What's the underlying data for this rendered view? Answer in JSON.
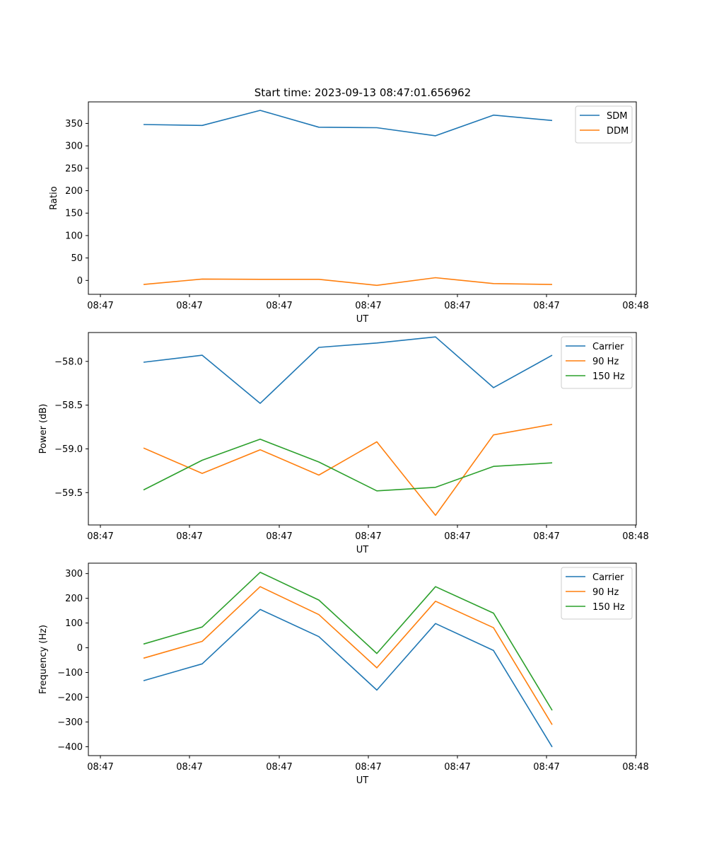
{
  "title": "Start time: 2023-09-13 08:47:01.656962",
  "colors": {
    "c0": "#1f77b4",
    "c1": "#ff7f0e",
    "c2": "#2ca02c"
  },
  "chart_data": [
    {
      "type": "line",
      "xlabel": "UT",
      "ylabel": "Ratio",
      "x_tick_labels": [
        "08:47",
        "08:47",
        "08:47",
        "08:47",
        "08:47",
        "08:47",
        "08:48"
      ],
      "y_ticks": [
        0,
        50,
        100,
        150,
        200,
        250,
        300,
        350
      ],
      "ylim": [
        -31,
        398
      ],
      "legend": "upper right",
      "series": [
        {
          "name": "SDM",
          "color_key": "c0",
          "values": [
            347.5,
            345.5,
            379,
            341.5,
            340.5,
            322.5,
            368.5,
            356.5
          ]
        },
        {
          "name": "DDM",
          "color_key": "c1",
          "values": [
            -9,
            3,
            2.5,
            2.5,
            -11,
            6,
            -7,
            -9
          ]
        }
      ]
    },
    {
      "type": "line",
      "xlabel": "UT",
      "ylabel": "Power (dB)",
      "x_tick_labels": [
        "08:47",
        "08:47",
        "08:47",
        "08:47",
        "08:47",
        "08:47",
        "08:48"
      ],
      "y_ticks": [
        -58.0,
        -58.5,
        -59.0,
        -59.5
      ],
      "y_tick_labels": [
        "−58.0",
        "−58.5",
        "−59.0",
        "−59.5"
      ],
      "ylim": [
        -59.87,
        -57.67
      ],
      "legend": "upper right",
      "series": [
        {
          "name": "Carrier",
          "color_key": "c0",
          "values": [
            -58.01,
            -57.93,
            -58.48,
            -57.84,
            -57.79,
            -57.72,
            -58.3,
            -57.93
          ]
        },
        {
          "name": "90 Hz",
          "color_key": "c1",
          "values": [
            -58.99,
            -59.28,
            -59.01,
            -59.3,
            -58.92,
            -59.76,
            -58.84,
            -58.72
          ]
        },
        {
          "name": "150 Hz",
          "color_key": "c2",
          "values": [
            -59.47,
            -59.13,
            -58.89,
            -59.15,
            -59.48,
            -59.44,
            -59.2,
            -59.16
          ]
        }
      ]
    },
    {
      "type": "line",
      "xlabel": "UT",
      "ylabel": "Frequency (Hz)",
      "x_tick_labels": [
        "08:47",
        "08:47",
        "08:47",
        "08:47",
        "08:47",
        "08:47",
        "08:48"
      ],
      "y_ticks": [
        300,
        200,
        100,
        0,
        -100,
        -200,
        -300,
        -400
      ],
      "y_tick_labels": [
        "300",
        "200",
        "100",
        "0",
        "−100",
        "−200",
        "−300",
        "−400"
      ],
      "ylim": [
        -436,
        342
      ],
      "legend": "upper right",
      "series": [
        {
          "name": "Carrier",
          "color_key": "c0",
          "values": [
            -133,
            -65,
            155,
            45,
            -171,
            98,
            -11,
            -401
          ]
        },
        {
          "name": "90 Hz",
          "color_key": "c1",
          "values": [
            -42,
            26,
            247,
            134,
            -81,
            188,
            81,
            -311
          ]
        },
        {
          "name": "150 Hz",
          "color_key": "c2",
          "values": [
            15,
            84,
            305,
            193,
            -23,
            247,
            140,
            -253
          ]
        }
      ]
    }
  ]
}
